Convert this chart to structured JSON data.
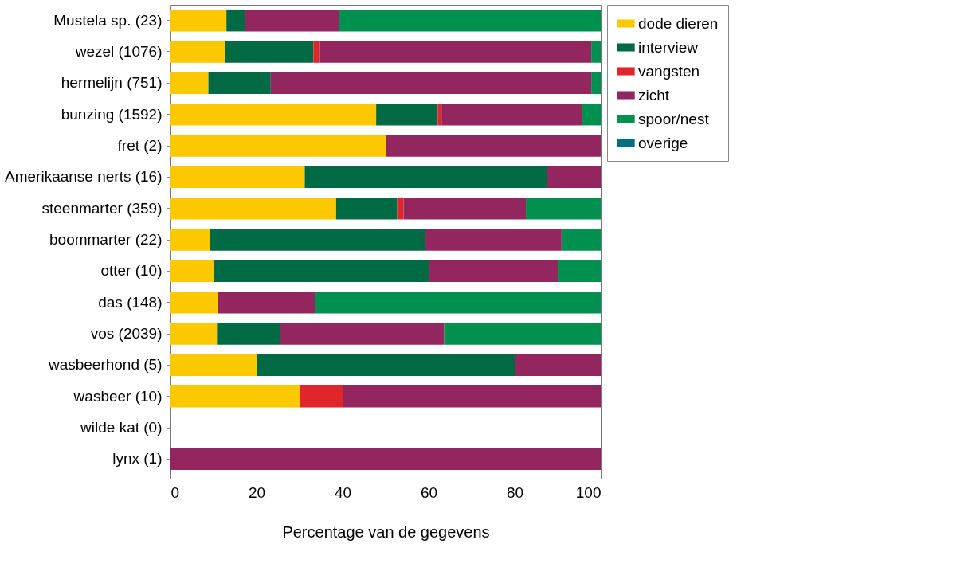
{
  "chart_data": {
    "type": "bar",
    "orientation": "horizontal",
    "stacked": true,
    "xlabel": "Percentage van de gegevens",
    "categories": [
      "Mustela sp. (23)",
      "wezel (1076)",
      "hermelijn (751)",
      "bunzing (1592)",
      "fret (2)",
      "Amerikaanse nerts (16)",
      "steenmarter (359)",
      "boommarter (22)",
      "otter (10)",
      "das (148)",
      "vos (2039)",
      "wasbeerhond (5)",
      "wasbeer (10)",
      "wilde kat (0)",
      "lynx (1)"
    ],
    "series": [
      {
        "name": "dode dieren",
        "color": "#fcc800",
        "values": [
          13,
          12.7,
          8.8,
          47.8,
          50,
          31.2,
          38.5,
          9.1,
          10,
          11.1,
          10.8,
          20,
          30,
          null,
          0
        ]
      },
      {
        "name": "interview",
        "color": "#006a45",
        "values": [
          4.4,
          20.5,
          14.5,
          14.3,
          0,
          56.3,
          14.2,
          50,
          50,
          0,
          14.6,
          60,
          0,
          null,
          0
        ]
      },
      {
        "name": "vangsten",
        "color": "#e0262b",
        "values": [
          0,
          1.5,
          0,
          0.9,
          0,
          0,
          1.5,
          0,
          0,
          0,
          0,
          0,
          10,
          null,
          0
        ]
      },
      {
        "name": "zicht",
        "color": "#93265e",
        "values": [
          21.7,
          63.1,
          74.5,
          32.6,
          50,
          12.5,
          28.4,
          31.8,
          30,
          22.6,
          38.2,
          20,
          60,
          null,
          100
        ]
      },
      {
        "name": "spoor/nest",
        "color": "#009150",
        "values": [
          60.9,
          2.2,
          2.2,
          4.4,
          0,
          0,
          17.4,
          9.1,
          10,
          66.3,
          36.4,
          0,
          0,
          null,
          0
        ]
      },
      {
        "name": "overige",
        "color": "#00707e",
        "values": [
          0,
          0,
          0,
          0,
          0,
          0,
          0,
          0,
          0,
          0,
          0,
          0,
          0,
          null,
          0
        ]
      }
    ],
    "xlim": [
      0,
      100
    ],
    "xticks": [
      0,
      20,
      40,
      60,
      80,
      100
    ],
    "grid": false,
    "legend": "top right"
  }
}
